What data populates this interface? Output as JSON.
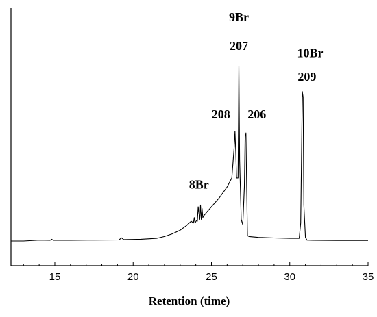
{
  "chart_data": {
    "type": "line",
    "title": "",
    "xlabel": "Retention (time)",
    "ylabel": "",
    "xlim": [
      12.2,
      35
    ],
    "ylim": [
      0,
      1
    ],
    "y_ticks_shown": false,
    "grid": false,
    "x_ticks": [
      15,
      20,
      25,
      30,
      35
    ],
    "x_tick_labels": [
      "15",
      "20",
      "25",
      "30",
      "35"
    ],
    "series": [
      {
        "x": [
          12.2,
          13.0,
          14.0,
          14.7,
          14.8,
          14.9,
          16.0,
          17.5,
          19.1,
          19.25,
          19.4,
          20.5,
          21.5,
          22.0,
          22.5,
          23.0,
          23.4,
          23.7,
          23.85,
          23.9,
          23.95,
          24.05,
          24.1,
          24.15,
          24.25,
          24.3,
          24.35,
          24.4,
          24.45,
          24.5,
          24.6,
          24.7,
          25.0,
          25.5,
          26.0,
          26.3,
          26.45,
          26.5,
          26.55,
          26.6,
          26.7,
          26.75,
          26.8,
          26.9,
          27.0,
          27.1,
          27.15,
          27.2,
          27.25,
          27.3,
          27.4,
          28.0,
          29.0,
          30.0,
          30.6,
          30.7,
          30.8,
          30.85,
          30.9,
          31.0,
          31.1,
          31.5,
          33.0,
          35.0
        ],
        "y": [
          0.0,
          0.0,
          0.005,
          0.004,
          0.01,
          0.004,
          0.004,
          0.005,
          0.006,
          0.018,
          0.008,
          0.01,
          0.015,
          0.025,
          0.04,
          0.06,
          0.085,
          0.11,
          0.1,
          0.13,
          0.1,
          0.115,
          0.11,
          0.19,
          0.12,
          0.2,
          0.12,
          0.18,
          0.13,
          0.14,
          0.15,
          0.16,
          0.19,
          0.24,
          0.3,
          0.35,
          0.52,
          0.61,
          0.5,
          0.35,
          0.35,
          0.97,
          0.45,
          0.12,
          0.09,
          0.3,
          0.58,
          0.6,
          0.3,
          0.03,
          0.025,
          0.02,
          0.017,
          0.015,
          0.015,
          0.1,
          0.83,
          0.8,
          0.2,
          0.02,
          0.005,
          0.004,
          0.003,
          0.003
        ]
      }
    ],
    "annotations": [
      {
        "text": "9Br",
        "x": 26.75,
        "y": 1.22
      },
      {
        "text": "207",
        "x": 26.75,
        "y": 1.06
      },
      {
        "text": "10Br",
        "x": 31.3,
        "y": 1.02
      },
      {
        "text": "209",
        "x": 31.1,
        "y": 0.89
      },
      {
        "text": "208",
        "x": 25.6,
        "y": 0.68
      },
      {
        "text": "206",
        "x": 27.9,
        "y": 0.68
      },
      {
        "text": "8Br",
        "x": 24.2,
        "y": 0.29
      }
    ]
  }
}
